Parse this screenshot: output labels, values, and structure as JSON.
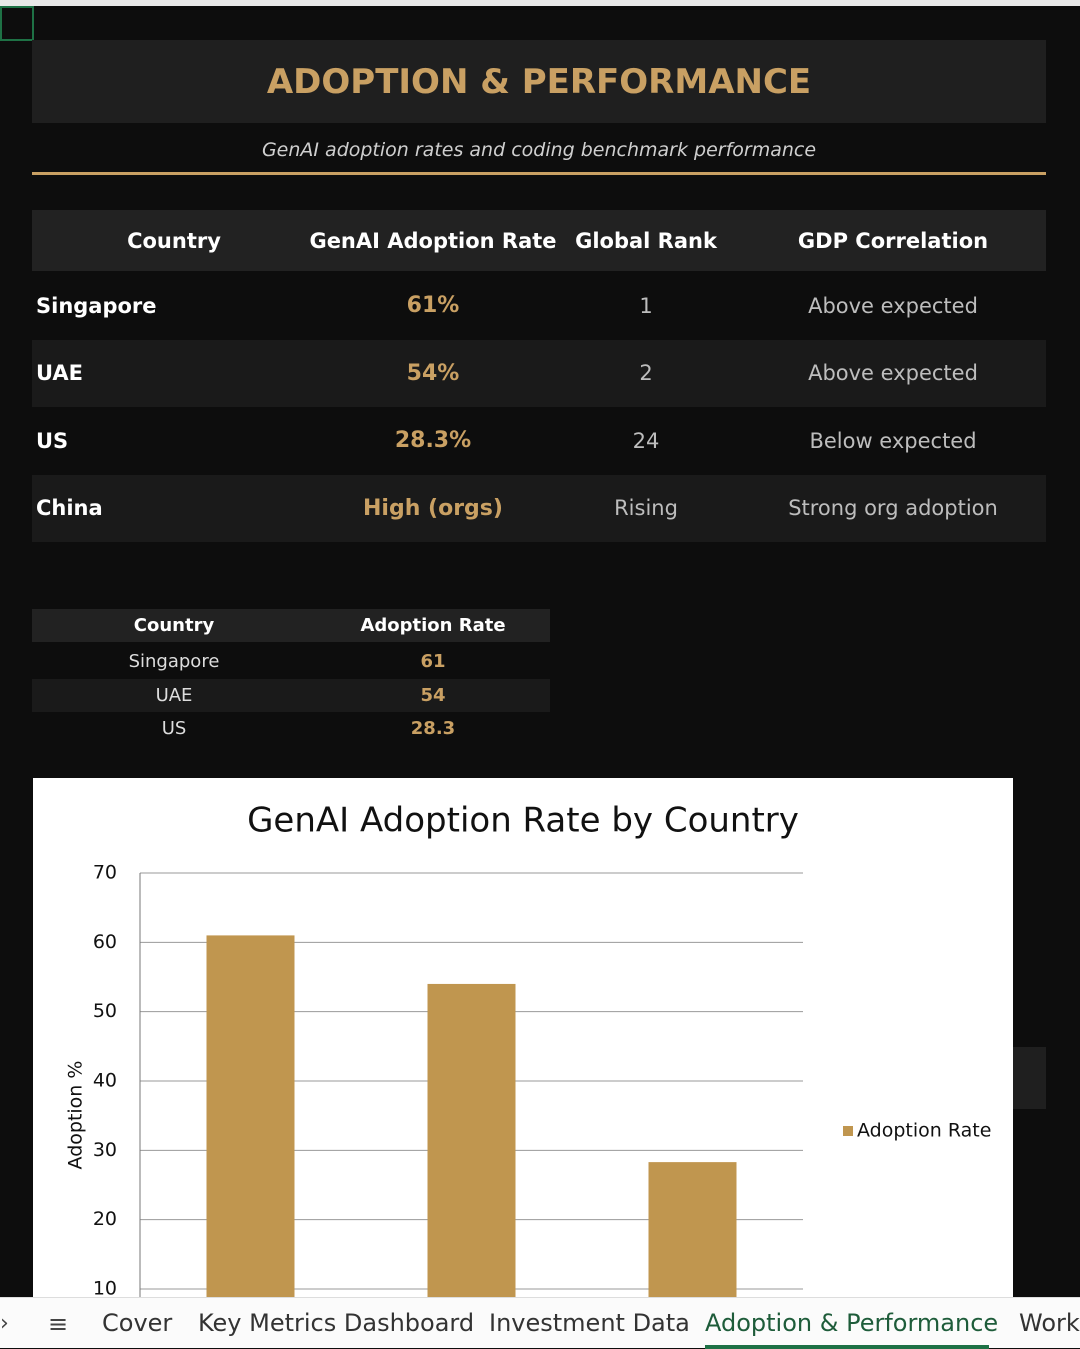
{
  "header": {
    "title": "ADOPTION & PERFORMANCE",
    "subtitle": "GenAI adoption rates and coding benchmark performance"
  },
  "table": {
    "columns": [
      "Country",
      "GenAI Adoption Rate",
      "Global Rank",
      "GDP Correlation"
    ],
    "rows": [
      [
        "Singapore",
        "61%",
        1,
        "Above expected"
      ],
      [
        "UAE",
        "54%",
        2,
        "Above expected"
      ],
      [
        "US",
        "28.3%",
        24,
        "Below expected"
      ],
      [
        "China",
        "High (orgs)",
        "Rising",
        "Strong org adoption"
      ]
    ]
  },
  "summary_table": {
    "columns": [
      "Country",
      "Adoption Rate"
    ],
    "rows": [
      [
        "Singapore",
        61
      ],
      [
        "UAE",
        54
      ],
      [
        "US",
        28.3
      ]
    ]
  },
  "chart_data": {
    "type": "bar",
    "title": "GenAI Adoption Rate by Country",
    "y_label": "Adoption %",
    "categories": [
      null,
      null,
      null
    ],
    "series": [
      {
        "name": "Adoption Rate",
        "color": "#c0964f",
        "values": [
          61,
          54,
          28.3
        ]
      }
    ],
    "ylim": [
      10,
      70
    ],
    "yticks": [
      10,
      20,
      30,
      40,
      50,
      60,
      70
    ],
    "grid": true,
    "legend": "right"
  },
  "sheet_tabs": {
    "items": [
      "Cover",
      "Key Metrics Dashboard",
      "Investment Data",
      "Adoption & Performance",
      "Work"
    ],
    "active": 3
  }
}
